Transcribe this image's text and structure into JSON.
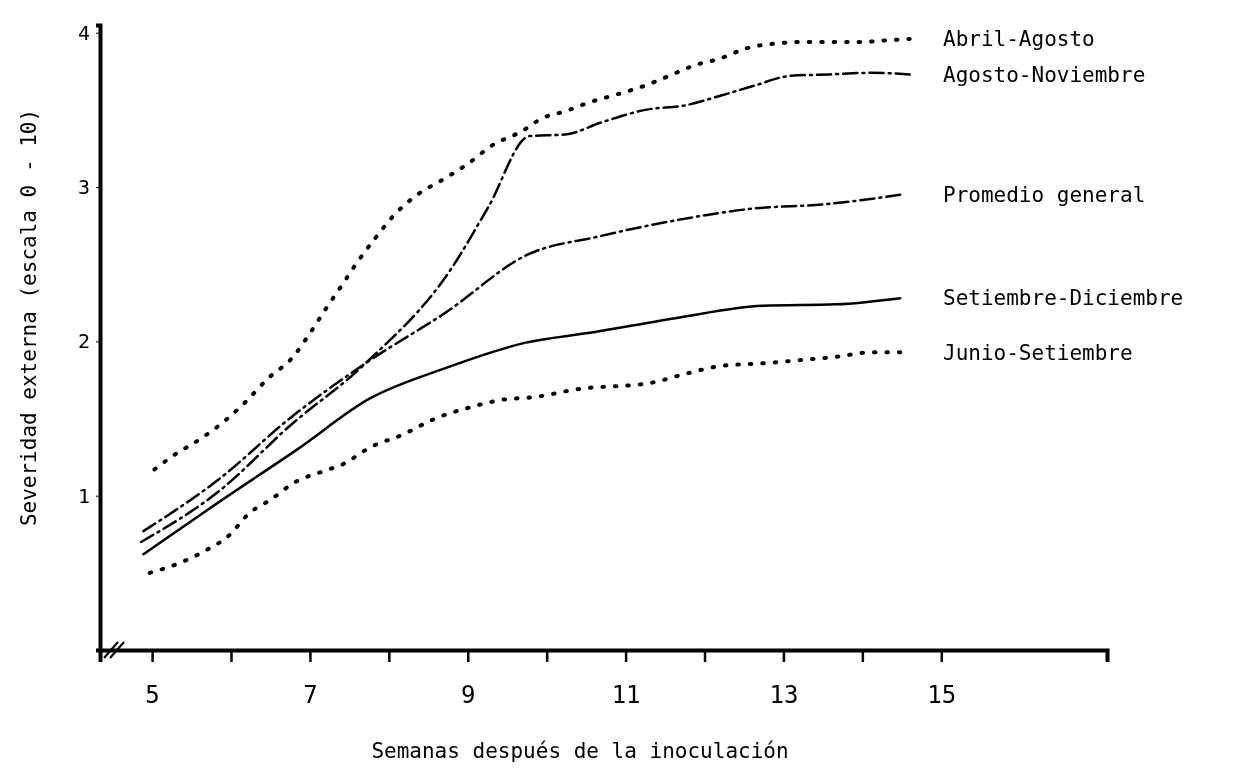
{
  "chart_data": {
    "type": "line",
    "xlabel": "Semanas después de la inoculación",
    "ylabel": "Severidad externa (escala 0 - 10)",
    "xlim": [
      4.34,
      17.1
    ],
    "ylim": [
      0,
      4.05
    ],
    "xticks": [
      5,
      {
        "value": 6,
        "label": null
      },
      7,
      {
        "value": 8,
        "label": null
      },
      9,
      {
        "value": 10,
        "label": null
      },
      11,
      {
        "value": 12,
        "label": null
      },
      13,
      {
        "value": 14,
        "label": null
      },
      15
    ],
    "yticks": [
      1,
      2,
      3,
      4
    ],
    "grid": false,
    "marker": "none",
    "series": [
      {
        "name": "Abril-Agosto",
        "color": "#000000",
        "line_style": "dotted",
        "x": [
          5.03,
          5.27,
          5.62,
          5.91,
          6.17,
          6.47,
          6.77,
          7.01,
          7.2,
          7.4,
          7.61,
          7.83,
          8.07,
          8.36,
          8.69,
          9.0,
          9.31,
          9.68,
          9.96,
          10.23,
          10.55,
          10.89,
          11.26,
          11.55,
          11.88,
          12.18,
          12.54,
          12.9,
          13.27,
          13.6,
          13.96,
          14.3,
          14.6
        ],
        "values": [
          1.17,
          1.26,
          1.37,
          1.48,
          1.6,
          1.76,
          1.89,
          2.06,
          2.21,
          2.36,
          2.52,
          2.67,
          2.82,
          2.95,
          3.05,
          3.15,
          3.27,
          3.36,
          3.45,
          3.49,
          3.55,
          3.6,
          3.66,
          3.72,
          3.79,
          3.83,
          3.9,
          3.93,
          3.94,
          3.94,
          3.94,
          3.95,
          3.96
        ]
      },
      {
        "name": "Agosto-Noviembre",
        "color": "#000000",
        "line_style": "dashdot",
        "x": [
          4.86,
          5.85,
          6.74,
          7.71,
          8.79,
          9.26,
          9.78,
          10.23,
          10.7,
          11.25,
          11.76,
          12.19,
          12.65,
          13.08,
          13.59,
          14.1,
          14.6
        ],
        "values": [
          0.7,
          1.03,
          1.45,
          1.86,
          2.47,
          2.87,
          3.33,
          3.34,
          3.42,
          3.5,
          3.53,
          3.59,
          3.66,
          3.72,
          3.73,
          3.74,
          3.73
        ]
      },
      {
        "name": "Promedio general",
        "color": "#000000",
        "line_style": "dashdot",
        "x": [
          4.89,
          5.83,
          6.79,
          7.71,
          8.73,
          9.75,
          10.66,
          11.59,
          12.61,
          13.56,
          14.48
        ],
        "values": [
          0.77,
          1.1,
          1.52,
          1.86,
          2.19,
          2.56,
          2.68,
          2.78,
          2.86,
          2.89,
          2.95
        ]
      },
      {
        "name": "Setiembre-Diciembre",
        "color": "#000000",
        "line_style": "solid",
        "x": [
          4.89,
          5.85,
          6.84,
          7.76,
          8.68,
          9.72,
          10.61,
          11.63,
          12.74,
          13.67,
          14.48
        ],
        "values": [
          0.62,
          0.96,
          1.3,
          1.63,
          1.82,
          1.99,
          2.06,
          2.15,
          2.23,
          2.24,
          2.28
        ]
      },
      {
        "name": "Junio-Setiembre",
        "color": "#000000",
        "line_style": "dotted",
        "x": [
          4.97,
          5.33,
          5.66,
          5.97,
          6.24,
          6.49,
          6.82,
          7.18,
          7.4,
          7.79,
          8.15,
          8.59,
          9.01,
          9.42,
          9.86,
          10.39,
          11.31,
          11.76,
          12.2,
          12.8,
          13.24,
          13.67,
          14.13,
          14.48
        ],
        "values": [
          0.5,
          0.56,
          0.64,
          0.74,
          0.89,
          0.97,
          1.09,
          1.16,
          1.2,
          1.32,
          1.39,
          1.5,
          1.57,
          1.62,
          1.64,
          1.69,
          1.73,
          1.79,
          1.84,
          1.86,
          1.88,
          1.9,
          1.93,
          1.93
        ]
      }
    ]
  }
}
